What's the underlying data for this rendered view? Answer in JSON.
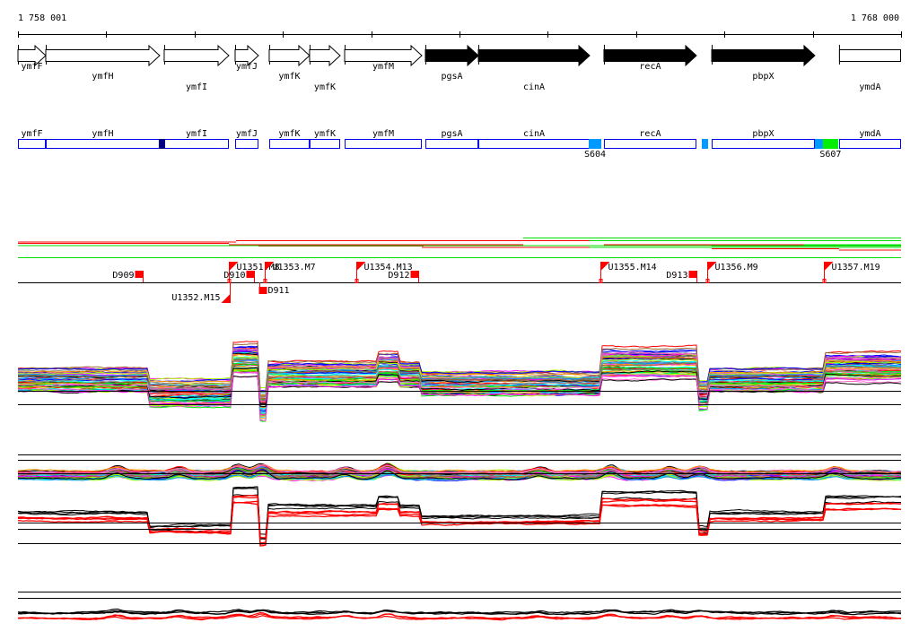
{
  "scale": {
    "start_label": "1 758 001",
    "end_label": "1 768 000",
    "start_bp": 1758001,
    "end_bp": 1768000,
    "tick_interval_bp": 1000
  },
  "genes": [
    {
      "name": "ymfF",
      "start": 1758001,
      "end": 1758316,
      "style": "open-arrow",
      "row": 0
    },
    {
      "name": "ymfH",
      "start": 1758316,
      "end": 1759606,
      "style": "open-arrow",
      "row": 1
    },
    {
      "name": "ymfI",
      "start": 1759657,
      "end": 1760389,
      "style": "open-arrow",
      "row": 2
    },
    {
      "name": "ymfJ",
      "start": 1760460,
      "end": 1760724,
      "style": "open-arrow",
      "row": 0
    },
    {
      "name": "ymfK",
      "start": 1760846,
      "end": 1761303,
      "style": "open-arrow",
      "row": 1
    },
    {
      "name": "ymfK",
      "start": 1761303,
      "end": 1761649,
      "style": "open-arrow",
      "row": 2
    },
    {
      "name": "ymfM",
      "start": 1761700,
      "end": 1762574,
      "style": "open-arrow",
      "row": 0
    },
    {
      "name": "pgsA",
      "start": 1762614,
      "end": 1763214,
      "style": "filled-arrow",
      "row": 1
    },
    {
      "name": "cinA",
      "start": 1763214,
      "end": 1764474,
      "style": "filled-arrow",
      "row": 2
    },
    {
      "name": "recA",
      "start": 1764636,
      "end": 1765683,
      "style": "filled-arrow",
      "row": 0
    },
    {
      "name": "pbpX",
      "start": 1765856,
      "end": 1767024,
      "style": "filled-arrow",
      "row": 1
    },
    {
      "name": "ymdA",
      "start": 1767298,
      "end": 1768000,
      "style": "open-box",
      "row": 2
    }
  ],
  "highlights": [
    {
      "start": 1759596,
      "end": 1759667,
      "color": "#000080",
      "label": ""
    },
    {
      "start": 1764464,
      "end": 1764606,
      "color": "#0099ff",
      "label": "S604"
    },
    {
      "start": 1765744,
      "end": 1765815,
      "color": "#0099ff",
      "label": ""
    },
    {
      "start": 1767024,
      "end": 1767115,
      "color": "#0099ff",
      "label": ""
    },
    {
      "start": 1767115,
      "end": 1767288,
      "color": "#00ee00",
      "label": "S607"
    }
  ],
  "segments": [
    {
      "start": 1758001,
      "end": 1760389,
      "color": "#ff0000",
      "lane": 4
    },
    {
      "start": 1758001,
      "end": 1760470,
      "color": "#ff0000",
      "lane": 5
    },
    {
      "start": 1760389,
      "end": 1763722,
      "color": "#ff0000",
      "lane": 3
    },
    {
      "start": 1760724,
      "end": 1762594,
      "color": "#ff0000",
      "lane": 2
    },
    {
      "start": 1762574,
      "end": 1764474,
      "color": "#ff0000",
      "lane": 1
    },
    {
      "start": 1764474,
      "end": 1768000,
      "color": "#00dd00",
      "lane": 1
    },
    {
      "start": 1760470,
      "end": 1764474,
      "color": "#ff0000",
      "lane": 6
    },
    {
      "start": 1763722,
      "end": 1768000,
      "color": "#00dd00",
      "lane": 8
    },
    {
      "start": 1764474,
      "end": 1768000,
      "color": "#00dd00",
      "lane": 6
    },
    {
      "start": 1764636,
      "end": 1766900,
      "color": "#ff0000",
      "lane": 3
    },
    {
      "start": 1766900,
      "end": 1768000,
      "color": "#00dd00",
      "lane": 3
    },
    {
      "start": 1765856,
      "end": 1767298,
      "color": "#ff0000",
      "lane": 0
    },
    {
      "start": 1765856,
      "end": 1768000,
      "color": "#00dd00",
      "lane": 2
    },
    {
      "start": 1767298,
      "end": 1768000,
      "color": "#ff0000",
      "lane": -1
    },
    {
      "start": 1767298,
      "end": 1768000,
      "color": "#00dd00",
      "lane": 1
    },
    {
      "start": 1758001,
      "end": 1768000,
      "color": "#00dd00",
      "lane": 9
    }
  ],
  "markers": [
    {
      "name": "D909",
      "pos": 1759413,
      "type": "square",
      "side": "above"
    },
    {
      "name": "U1351.M8",
      "pos": 1760389,
      "type": "flag",
      "side": "above"
    },
    {
      "name": "U1352.M15",
      "pos": 1760399,
      "type": "flag",
      "side": "below"
    },
    {
      "name": "D910",
      "pos": 1760673,
      "type": "square",
      "side": "above"
    },
    {
      "name": "D911",
      "pos": 1760734,
      "type": "square",
      "side": "below"
    },
    {
      "name": "U1353.M7",
      "pos": 1760795,
      "type": "flag",
      "side": "above"
    },
    {
      "name": "U1354.M13",
      "pos": 1761832,
      "type": "flag",
      "side": "above"
    },
    {
      "name": "D912",
      "pos": 1762534,
      "type": "square",
      "side": "above"
    },
    {
      "name": "U1355.M14",
      "pos": 1764596,
      "type": "flag",
      "side": "above"
    },
    {
      "name": "D913",
      "pos": 1765683,
      "type": "square",
      "side": "above"
    },
    {
      "name": "U1356.M9",
      "pos": 1765805,
      "type": "flag",
      "side": "above"
    },
    {
      "name": "U1357.M19",
      "pos": 1767125,
      "type": "flag",
      "side": "above"
    }
  ],
  "colors": {
    "gene_box": "#0000ee",
    "marker": "#ff0000",
    "palette": [
      "#ff0000",
      "#00ee00",
      "#0000ff",
      "#ff00ff",
      "#00ffff",
      "#ff9900",
      "#888888",
      "#aaff00",
      "#0099ff",
      "#996633",
      "#000000",
      "#ff66cc"
    ]
  }
}
